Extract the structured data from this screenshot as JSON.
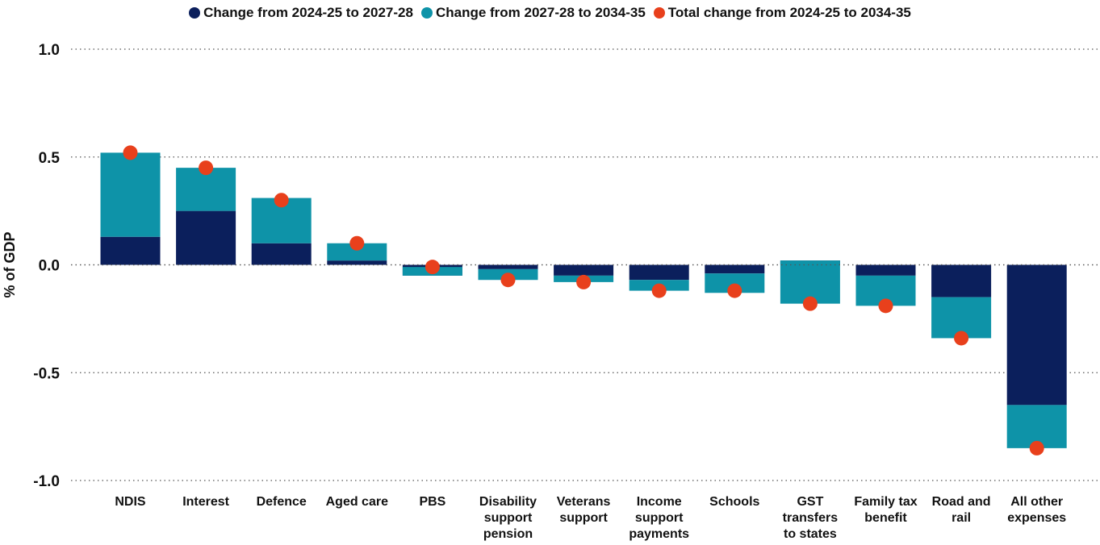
{
  "chart_data": {
    "type": "bar",
    "stacked": true,
    "ylabel": "% of GDP",
    "ylim": [
      -1.0,
      1.0
    ],
    "yticks": [
      1.0,
      0.5,
      0.0,
      -0.5,
      -1.0
    ],
    "ytick_labels": [
      "1.0",
      "0.5",
      "0.0",
      "-0.5",
      "-1.0"
    ],
    "grid": "dotted horizontal",
    "legend_position": "top",
    "categories": [
      [
        "NDIS"
      ],
      [
        "Interest"
      ],
      [
        "Defence"
      ],
      [
        "Aged care"
      ],
      [
        "PBS"
      ],
      [
        "Disability",
        "support",
        "pension"
      ],
      [
        "Veterans",
        "support"
      ],
      [
        "Income",
        "support",
        "payments"
      ],
      [
        "Schools"
      ],
      [
        "GST",
        "transfers",
        "to states"
      ],
      [
        "Family tax",
        "benefit"
      ],
      [
        "Road and",
        "rail"
      ],
      [
        "All other",
        "expenses"
      ]
    ],
    "series": [
      {
        "name": "Change from 2024-25 to 2027-28",
        "kind": "bar",
        "color": "#0b1f5c",
        "values": [
          0.13,
          0.25,
          0.1,
          0.02,
          -0.05,
          -0.02,
          -0.05,
          -0.07,
          -0.04,
          0.02,
          -0.05,
          -0.15,
          -0.65
        ]
      },
      {
        "name": "Change from 2027-28 to 2034-35",
        "kind": "bar",
        "color": "#0e93a8",
        "values": [
          0.39,
          0.2,
          0.21,
          0.08,
          0.04,
          -0.05,
          -0.03,
          -0.05,
          -0.09,
          -0.2,
          -0.14,
          -0.19,
          -0.2
        ]
      },
      {
        "name": "Total change from 2024-25 to 2034-35",
        "kind": "point",
        "color": "#e8401c",
        "values": [
          0.52,
          0.45,
          0.3,
          0.1,
          -0.01,
          -0.07,
          -0.08,
          -0.12,
          -0.12,
          -0.18,
          -0.19,
          -0.34,
          -0.85
        ]
      }
    ]
  }
}
